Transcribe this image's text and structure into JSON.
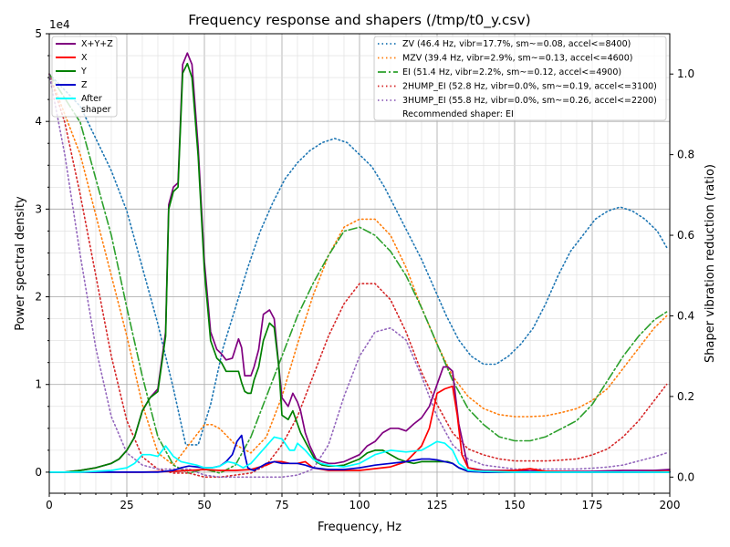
{
  "chart_data": {
    "type": "line",
    "title": "Frequency response and shapers (/tmp/t0_y.csv)",
    "xlabel": "Frequency, Hz",
    "ylabel_left": "Power spectral density",
    "ylabel_right": "Shaper vibration reduction (ratio)",
    "left_axis_multiplier": "1e4",
    "xlim": [
      0,
      200
    ],
    "ylim_left": [
      -0.24,
      5.0
    ],
    "ylim_right": [
      -0.04,
      1.1
    ],
    "x_ticks": [
      "0",
      "25",
      "50",
      "75",
      "100",
      "125",
      "150",
      "175",
      "200"
    ],
    "y_ticks_left": [
      "0",
      "1",
      "2",
      "3",
      "4",
      "5"
    ],
    "y_ticks_right": [
      "0.0",
      "0.2",
      "0.4",
      "0.6",
      "0.8",
      "1.0"
    ],
    "grid": true,
    "legend_left_position": "top-left",
    "legend_right_position": "top-right",
    "psd_series": [
      {
        "name": "X+Y+Z",
        "color": "#800080",
        "style": "solid",
        "x": [
          0,
          5,
          10,
          15,
          20,
          22.5,
          25,
          27.5,
          30,
          32.5,
          35,
          37.5,
          38.5,
          40,
          41.5,
          43,
          44.5,
          46,
          48,
          50,
          52,
          54,
          55.5,
          57,
          59,
          61,
          62,
          63,
          64,
          65,
          66,
          67.5,
          69,
          71,
          72.5,
          74,
          75,
          77,
          78.5,
          80,
          81,
          82.5,
          84,
          86,
          88,
          90,
          92,
          95,
          100,
          102.5,
          105,
          107.5,
          110,
          112.5,
          115,
          117.5,
          120,
          122.5,
          125,
          127,
          128.5,
          130,
          132,
          135,
          140,
          150,
          160,
          175,
          185,
          195,
          200
        ],
        "y": [
          0.0,
          0.0,
          0.02,
          0.05,
          0.1,
          0.15,
          0.25,
          0.4,
          0.7,
          0.85,
          0.95,
          1.6,
          3.05,
          3.25,
          3.3,
          4.65,
          4.78,
          4.65,
          3.7,
          2.4,
          1.6,
          1.4,
          1.35,
          1.28,
          1.3,
          1.52,
          1.42,
          1.1,
          1.1,
          1.1,
          1.2,
          1.4,
          1.8,
          1.85,
          1.75,
          1.2,
          0.85,
          0.75,
          0.9,
          0.8,
          0.7,
          0.45,
          0.3,
          0.15,
          0.12,
          0.1,
          0.1,
          0.12,
          0.2,
          0.3,
          0.35,
          0.45,
          0.5,
          0.5,
          0.47,
          0.55,
          0.62,
          0.75,
          1.0,
          1.2,
          1.2,
          1.15,
          0.55,
          0.05,
          0.02,
          0.02,
          0.01,
          0.01,
          0.02,
          0.02,
          0.03
        ]
      },
      {
        "name": "X",
        "color": "#ff0000",
        "style": "solid",
        "x": [
          0,
          20,
          30,
          40,
          45,
          50,
          55,
          60,
          65,
          70,
          72.5,
          75,
          77.5,
          80,
          82.5,
          85,
          90,
          100,
          110,
          115,
          120,
          122.5,
          125,
          127.5,
          130,
          131.5,
          133,
          135,
          140,
          150,
          155,
          160,
          175,
          190,
          200
        ],
        "y": [
          0.0,
          0.0,
          0.0,
          0.01,
          0.02,
          0.03,
          0.02,
          0.02,
          0.03,
          0.08,
          0.12,
          0.12,
          0.1,
          0.1,
          0.12,
          0.05,
          0.02,
          0.02,
          0.06,
          0.12,
          0.3,
          0.5,
          0.9,
          0.95,
          0.98,
          0.65,
          0.2,
          0.05,
          0.01,
          0.02,
          0.04,
          0.01,
          0.0,
          0.0,
          0.01
        ]
      },
      {
        "name": "Y",
        "color": "#008000",
        "style": "solid",
        "x": [
          0,
          5,
          10,
          15,
          20,
          22.5,
          25,
          27.5,
          30,
          32.5,
          35,
          37.5,
          38.5,
          40,
          41.5,
          43,
          44.5,
          46,
          48,
          50,
          52,
          54,
          55.5,
          57,
          59,
          61,
          62,
          63,
          64,
          65,
          66,
          67.5,
          69,
          71,
          72.5,
          74,
          75,
          77,
          78.5,
          80,
          81,
          82.5,
          84,
          86,
          88,
          90,
          92,
          95,
          100,
          102.5,
          105,
          107.5,
          110,
          112.5,
          115,
          117.5,
          120,
          122.5,
          125,
          127,
          128.5,
          130,
          132,
          135,
          140,
          150,
          160,
          175,
          185,
          195,
          200
        ],
        "y": [
          0.0,
          0.0,
          0.02,
          0.05,
          0.1,
          0.15,
          0.25,
          0.4,
          0.7,
          0.85,
          0.92,
          1.55,
          3.0,
          3.2,
          3.25,
          4.55,
          4.66,
          4.5,
          3.6,
          2.3,
          1.5,
          1.3,
          1.25,
          1.15,
          1.15,
          1.15,
          1.02,
          0.92,
          0.9,
          0.9,
          1.05,
          1.2,
          1.5,
          1.7,
          1.65,
          1.2,
          0.65,
          0.6,
          0.7,
          0.55,
          0.45,
          0.35,
          0.25,
          0.12,
          0.08,
          0.07,
          0.07,
          0.08,
          0.15,
          0.22,
          0.25,
          0.25,
          0.2,
          0.15,
          0.12,
          0.1,
          0.12,
          0.12,
          0.12,
          0.12,
          0.12,
          0.1,
          0.05,
          0.01,
          0.0,
          0.0,
          0.0,
          0.0,
          0.0,
          0.0,
          0.0
        ]
      },
      {
        "name": "Z",
        "color": "#0000cc",
        "style": "solid",
        "x": [
          0,
          10,
          20,
          30,
          35,
          40,
          42.5,
          45,
          47.5,
          50,
          52.5,
          55,
          57,
          59,
          60.5,
          62,
          63,
          64,
          65,
          66,
          67.5,
          70,
          72.5,
          75,
          77.5,
          80,
          82.5,
          85,
          90,
          95,
          100,
          105,
          110,
          115,
          120,
          122.5,
          125,
          127.5,
          130,
          132,
          135,
          140,
          150,
          160,
          175,
          190,
          200
        ],
        "y": [
          0.0,
          0.0,
          0.0,
          0.0,
          0.0,
          0.02,
          0.05,
          0.07,
          0.06,
          0.05,
          0.05,
          0.07,
          0.12,
          0.2,
          0.35,
          0.42,
          0.2,
          0.05,
          0.03,
          0.02,
          0.05,
          0.1,
          0.12,
          0.1,
          0.1,
          0.1,
          0.08,
          0.05,
          0.03,
          0.03,
          0.05,
          0.08,
          0.1,
          0.12,
          0.15,
          0.15,
          0.14,
          0.12,
          0.1,
          0.05,
          0.01,
          0.0,
          0.0,
          0.0,
          0.0,
          0.0,
          0.0
        ]
      },
      {
        "name": "After\nshaper",
        "color": "#00ffff",
        "style": "solid",
        "x": [
          0,
          10,
          20,
          25,
          27.5,
          30,
          32.5,
          35,
          37.5,
          40,
          42.5,
          45,
          47.5,
          50,
          52.5,
          55,
          57.5,
          60,
          62.5,
          65,
          67.5,
          70,
          72.5,
          75,
          77.5,
          79,
          80,
          82.5,
          85,
          87.5,
          90,
          95,
          100,
          105,
          110,
          115,
          120,
          122.5,
          125,
          127.5,
          130,
          132,
          135,
          140,
          150,
          160,
          175,
          190,
          200
        ],
        "y": [
          0.0,
          0.0,
          0.02,
          0.05,
          0.1,
          0.2,
          0.2,
          0.18,
          0.3,
          0.18,
          0.12,
          0.1,
          0.08,
          0.05,
          0.05,
          0.07,
          0.12,
          0.1,
          0.05,
          0.1,
          0.2,
          0.3,
          0.4,
          0.38,
          0.25,
          0.25,
          0.33,
          0.25,
          0.15,
          0.1,
          0.08,
          0.06,
          0.1,
          0.2,
          0.25,
          0.23,
          0.25,
          0.3,
          0.35,
          0.33,
          0.25,
          0.1,
          0.02,
          0.01,
          0.0,
          0.0,
          0.0,
          0.0,
          0.0
        ]
      }
    ],
    "shaper_series": [
      {
        "name": "ZV (46.4 Hz, vibr=17.7%, sm~=0.08, accel<=8400)",
        "color": "#1f77b4",
        "style": "dotted",
        "x": [
          0,
          10,
          20,
          25,
          30,
          35,
          40,
          44,
          48,
          52,
          56,
          60,
          64,
          68,
          72,
          76,
          80,
          84,
          88,
          92,
          96,
          100,
          104,
          108,
          112,
          116,
          120,
          124,
          128,
          132,
          136,
          140,
          144,
          148,
          152,
          156,
          160,
          164,
          168,
          172,
          176,
          180,
          184,
          188,
          192,
          196,
          199
        ],
        "y": [
          1.0,
          0.92,
          0.76,
          0.66,
          0.52,
          0.38,
          0.22,
          0.08,
          0.08,
          0.18,
          0.32,
          0.42,
          0.52,
          0.61,
          0.68,
          0.74,
          0.78,
          0.81,
          0.83,
          0.84,
          0.83,
          0.8,
          0.77,
          0.72,
          0.66,
          0.6,
          0.54,
          0.47,
          0.4,
          0.34,
          0.3,
          0.28,
          0.28,
          0.3,
          0.33,
          0.37,
          0.43,
          0.5,
          0.56,
          0.6,
          0.64,
          0.66,
          0.67,
          0.66,
          0.64,
          0.61,
          0.57
        ]
      },
      {
        "name": "MZV (39.4 Hz, vibr=2.9%, sm~=0.13, accel<=4600)",
        "color": "#ff7f0e",
        "style": "dotted",
        "x": [
          0,
          10,
          20,
          25,
          30,
          35,
          40,
          45,
          50,
          52.5,
          55,
          60,
          65,
          70,
          75,
          80,
          85,
          90,
          95,
          100,
          105,
          110,
          115,
          120,
          125,
          130,
          135,
          140,
          145,
          150,
          155,
          160,
          165,
          170,
          175,
          180,
          185,
          190,
          195,
          199
        ],
        "y": [
          1.0,
          0.8,
          0.5,
          0.35,
          0.18,
          0.06,
          0.03,
          0.08,
          0.13,
          0.13,
          0.12,
          0.08,
          0.06,
          0.1,
          0.2,
          0.33,
          0.45,
          0.55,
          0.62,
          0.64,
          0.64,
          0.6,
          0.52,
          0.42,
          0.33,
          0.25,
          0.2,
          0.17,
          0.155,
          0.15,
          0.15,
          0.152,
          0.16,
          0.17,
          0.19,
          0.22,
          0.27,
          0.32,
          0.37,
          0.4
        ]
      },
      {
        "name": "EI (51.4 Hz, vibr=2.2%, sm~=0.12, accel<=4900)",
        "color": "#2ca02c",
        "style": "dashdot",
        "x": [
          0,
          10,
          20,
          25,
          30,
          35,
          40,
          45,
          50,
          55,
          60,
          65,
          70,
          75,
          80,
          85,
          90,
          95,
          100,
          105,
          110,
          115,
          120,
          125,
          130,
          135,
          140,
          145,
          150,
          155,
          160,
          165,
          170,
          175,
          180,
          185,
          190,
          195,
          199
        ],
        "y": [
          1.0,
          0.88,
          0.6,
          0.42,
          0.25,
          0.1,
          0.03,
          0.01,
          0.02,
          0.01,
          0.03,
          0.1,
          0.2,
          0.3,
          0.4,
          0.48,
          0.55,
          0.61,
          0.62,
          0.6,
          0.56,
          0.5,
          0.42,
          0.33,
          0.24,
          0.17,
          0.13,
          0.1,
          0.09,
          0.09,
          0.1,
          0.12,
          0.14,
          0.18,
          0.24,
          0.3,
          0.35,
          0.39,
          0.41
        ]
      },
      {
        "name": "2HUMP_EI (52.8 Hz, vibr=0.0%, sm~=0.19, accel<=3100)",
        "color": "#d62728",
        "style": "dotted",
        "x": [
          0,
          5,
          10,
          15,
          20,
          25,
          30,
          35,
          40,
          45,
          50,
          55,
          60,
          65,
          70,
          75,
          80,
          85,
          90,
          95,
          100,
          105,
          110,
          115,
          120,
          125,
          130,
          135,
          140,
          145,
          150,
          155,
          160,
          165,
          170,
          175,
          180,
          185,
          190,
          195,
          199
        ],
        "y": [
          1.0,
          0.88,
          0.7,
          0.5,
          0.3,
          0.14,
          0.05,
          0.02,
          0.01,
          0.01,
          0.0,
          0.0,
          0.005,
          0.01,
          0.03,
          0.08,
          0.15,
          0.25,
          0.35,
          0.43,
          0.48,
          0.48,
          0.44,
          0.36,
          0.26,
          0.18,
          0.11,
          0.07,
          0.055,
          0.045,
          0.04,
          0.04,
          0.04,
          0.042,
          0.045,
          0.055,
          0.07,
          0.1,
          0.14,
          0.19,
          0.23
        ]
      },
      {
        "name": "3HUMP_EI (55.8 Hz, vibr=0.0%, sm~=0.26, accel<=2200)",
        "color": "#9467bd",
        "style": "dotted",
        "x": [
          0,
          5,
          10,
          15,
          20,
          25,
          30,
          35,
          40,
          45,
          50,
          55,
          60,
          65,
          70,
          75,
          80,
          85,
          90,
          95,
          100,
          105,
          110,
          115,
          120,
          125,
          130,
          135,
          140,
          145,
          150,
          155,
          160,
          165,
          170,
          175,
          180,
          185,
          190,
          195,
          199
        ],
        "y": [
          1.0,
          0.8,
          0.55,
          0.32,
          0.15,
          0.06,
          0.03,
          0.02,
          0.02,
          0.02,
          0.005,
          0.0,
          0.0,
          0.0,
          0.0,
          0.0,
          0.005,
          0.02,
          0.08,
          0.2,
          0.3,
          0.36,
          0.37,
          0.34,
          0.25,
          0.15,
          0.08,
          0.045,
          0.03,
          0.025,
          0.02,
          0.02,
          0.02,
          0.02,
          0.02,
          0.022,
          0.025,
          0.03,
          0.04,
          0.05,
          0.06
        ]
      }
    ],
    "recommended_shaper": "Recommended shaper: EI"
  }
}
